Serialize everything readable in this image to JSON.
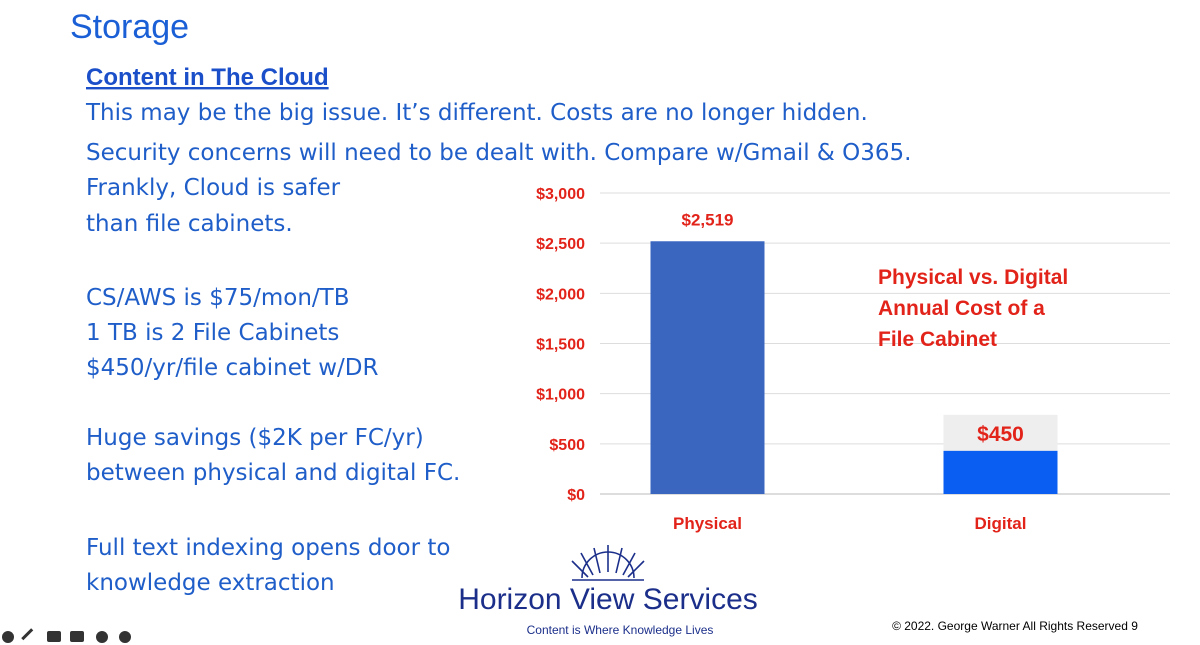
{
  "slide": {
    "title": "Storage",
    "heading": "Content in The Cloud",
    "intro": [
      "This may be the big issue.  It’s different. Costs are no longer hidden.",
      "Security concerns will need to be dealt with.  Compare w/Gmail & O365."
    ],
    "safety": [
      "Frankly, Cloud is safer",
      "than file cabinets."
    ],
    "costs": [
      "CS/AWS is $75/mon/TB",
      "1 TB is 2 File Cabinets",
      "$450/yr/file cabinet w/DR"
    ],
    "savings": [
      "Huge savings ($2K per FC/yr)",
      "between physical and digital FC."
    ],
    "indexing": [
      "Full text indexing opens door to",
      "knowledge extraction"
    ],
    "logo": "Horizon View Services",
    "tagline": "Content is Where Knowledge Lives",
    "footer": "© 2022. George Warner All Rights Reserved  9"
  },
  "chart_data": {
    "type": "bar",
    "title": [
      "Physical vs. Digital",
      "Annual Cost of a",
      "File Cabinet"
    ],
    "categories": [
      "Physical",
      "Digital"
    ],
    "values": [
      2519,
      450
    ],
    "value_labels": [
      "$2,519",
      "$450"
    ],
    "colors": [
      "#3a66c0",
      "#0b5ef2"
    ],
    "ylim": [
      0,
      3000
    ],
    "yticks": [
      {
        "value": 0,
        "label": "$0"
      },
      {
        "value": 500,
        "label": "$500"
      },
      {
        "value": 1000,
        "label": "$1,000"
      },
      {
        "value": 1500,
        "label": "$1,500"
      },
      {
        "value": 2000,
        "label": "$2,000"
      },
      {
        "value": 2500,
        "label": "$2,500"
      },
      {
        "value": 3000,
        "label": "$3,000"
      }
    ],
    "grid": true
  }
}
